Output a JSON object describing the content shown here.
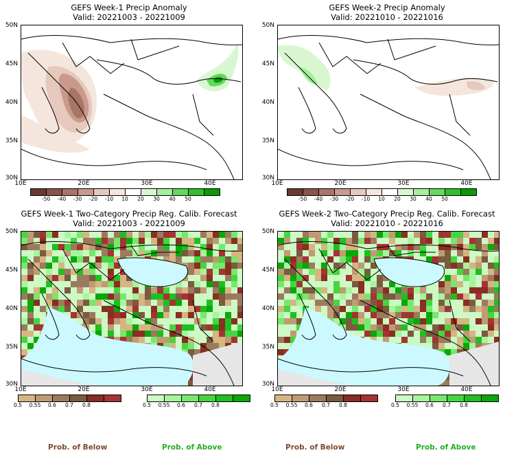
{
  "panels": [
    {
      "line1": "GEFS Week-1 Precip Anomaly",
      "line2": "Valid: 20221003 - 20221009"
    },
    {
      "line1": "GEFS Week-2 Precip Anomaly",
      "line2": "Valid: 20221010 - 20221016"
    },
    {
      "line1": "GEFS Week-1 Two-Category Precip Reg. Calib. Forecast",
      "line2": "Valid: 20221003 - 20221009"
    },
    {
      "line1": "GEFS Week-2 Two-Category Precip Reg. Calib. Forecast",
      "line2": "Valid: 20221010 - 20221016"
    }
  ],
  "axes": {
    "lat_labels": [
      "50N",
      "45N",
      "40N",
      "35N",
      "30N"
    ],
    "lon_labels": [
      "10E",
      "20E",
      "30E",
      "40E"
    ]
  },
  "anomaly_colorbar": {
    "labels": [
      "-50",
      "-40",
      "-30",
      "-20",
      "-10",
      "10",
      "20",
      "30",
      "40",
      "50"
    ],
    "colors": [
      "#6b3a2e",
      "#8a5548",
      "#a87568",
      "#c89a8c",
      "#e6c8bc",
      "#f4e6dc",
      "#ffffff",
      "#d8f7d0",
      "#a6ef9a",
      "#62d95a",
      "#2fbf2c",
      "#0a9a0a"
    ]
  },
  "prob_colorbar": {
    "below_labels": [
      "0.5",
      "0.55",
      "0.6",
      "0.7",
      "0.8"
    ],
    "above_labels": [
      "0.5",
      "0.55",
      "0.6",
      "0.7",
      "0.8"
    ],
    "below_colors": [
      "#d6b583",
      "#bf9b73",
      "#9c7a5e",
      "#7b5a3f",
      "#8a2d22",
      "#a63232"
    ],
    "above_colors": [
      "#ccf9c4",
      "#a6f59c",
      "#76e86c",
      "#45d53f",
      "#1fbf1f",
      "#0aa70a"
    ]
  },
  "legend": {
    "below": "Prob. of Below",
    "above": "Prob. of Above",
    "below_color": "#7b4a2f",
    "above_color": "#20b020"
  }
}
